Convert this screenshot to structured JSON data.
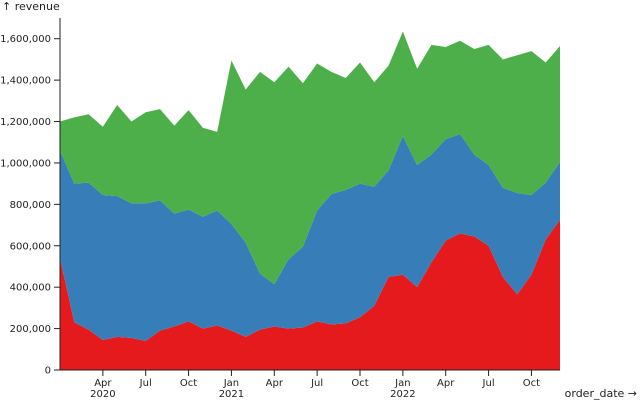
{
  "chart_data": {
    "type": "area",
    "stacked": true,
    "title": "",
    "xlabel": "order_date →",
    "ylabel": "↑ revenue",
    "ylim": [
      0,
      1700000
    ],
    "y_ticks": [
      0,
      200000,
      400000,
      600000,
      800000,
      1000000,
      1200000,
      1400000,
      1600000
    ],
    "y_tick_labels": [
      "0",
      "200,000",
      "400,000",
      "600,000",
      "800,000",
      "1,000,000",
      "1,200,000",
      "1,400,000",
      "1,600,000"
    ],
    "x_ticks": [
      {
        "month": "2020-04",
        "label": "Apr",
        "year": "2020"
      },
      {
        "month": "2020-07",
        "label": "Jul",
        "year": ""
      },
      {
        "month": "2020-10",
        "label": "Oct",
        "year": ""
      },
      {
        "month": "2021-01",
        "label": "Jan",
        "year": "2021"
      },
      {
        "month": "2021-04",
        "label": "Apr",
        "year": ""
      },
      {
        "month": "2021-07",
        "label": "Jul",
        "year": ""
      },
      {
        "month": "2021-10",
        "label": "Oct",
        "year": ""
      },
      {
        "month": "2022-01",
        "label": "Jan",
        "year": "2022"
      },
      {
        "month": "2022-04",
        "label": "Apr",
        "year": ""
      },
      {
        "month": "2022-07",
        "label": "Jul",
        "year": ""
      },
      {
        "month": "2022-10",
        "label": "Oct",
        "year": ""
      }
    ],
    "x": [
      "2020-01",
      "2020-02",
      "2020-03",
      "2020-04",
      "2020-05",
      "2020-06",
      "2020-07",
      "2020-08",
      "2020-09",
      "2020-10",
      "2020-11",
      "2020-12",
      "2021-01",
      "2021-02",
      "2021-03",
      "2021-04",
      "2021-05",
      "2021-06",
      "2021-07",
      "2021-08",
      "2021-09",
      "2021-10",
      "2021-11",
      "2021-12",
      "2022-01",
      "2022-02",
      "2022-03",
      "2022-04",
      "2022-05",
      "2022-06",
      "2022-07",
      "2022-08",
      "2022-09",
      "2022-10",
      "2022-11",
      "2022-12"
    ],
    "series": [
      {
        "color": "#e41a1c",
        "values": [
          540000,
          230000,
          195000,
          145000,
          160000,
          155000,
          140000,
          190000,
          210000,
          235000,
          200000,
          215000,
          190000,
          160000,
          195000,
          210000,
          200000,
          205000,
          235000,
          220000,
          225000,
          255000,
          310000,
          450000,
          460000,
          400000,
          520000,
          625000,
          660000,
          645000,
          600000,
          450000,
          365000,
          460000,
          630000,
          725000
        ]
      },
      {
        "color": "#377eb8",
        "values": [
          520000,
          670000,
          710000,
          700000,
          680000,
          650000,
          665000,
          630000,
          545000,
          540000,
          540000,
          555000,
          515000,
          455000,
          270000,
          205000,
          335000,
          390000,
          535000,
          630000,
          645000,
          645000,
          575000,
          515000,
          670000,
          590000,
          520000,
          490000,
          480000,
          395000,
          390000,
          430000,
          490000,
          385000,
          275000,
          280000
        ]
      },
      {
        "color": "#4daf4a",
        "values": [
          140000,
          320000,
          330000,
          330000,
          440000,
          395000,
          440000,
          440000,
          425000,
          480000,
          430000,
          380000,
          790000,
          740000,
          975000,
          975000,
          930000,
          790000,
          710000,
          590000,
          540000,
          585000,
          505000,
          505000,
          505000,
          465000,
          530000,
          445000,
          450000,
          510000,
          580000,
          620000,
          665000,
          695000,
          580000,
          560000
        ]
      }
    ]
  }
}
